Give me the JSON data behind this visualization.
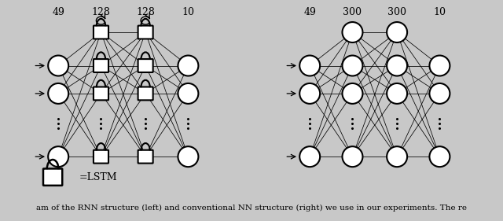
{
  "fig_bg": "#d0d0d0",
  "panel_bg": "#ffffff",
  "panel_facecolor": "#f8f8f8",
  "left_labels": [
    "49",
    "128",
    "128",
    "10"
  ],
  "right_labels": [
    "49",
    "300",
    "300",
    "10"
  ],
  "legend_text": "=LSTM",
  "caption": "am of the RNN structure (left) and conventional NN structure (right) we use in our experiments. The re"
}
